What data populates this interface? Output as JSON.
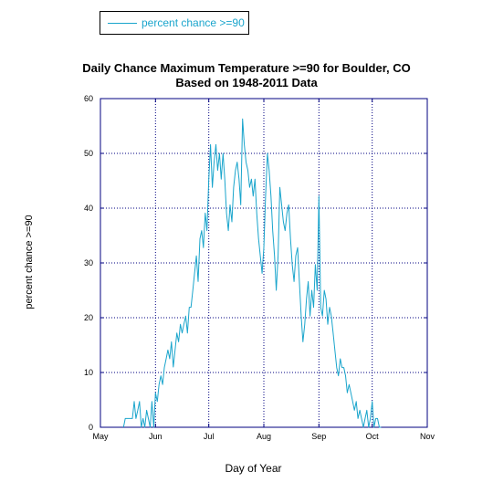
{
  "legend": {
    "label": "percent chance >=90",
    "color": "#1aa5cc"
  },
  "chart_data": {
    "type": "line",
    "title": "Daily Chance Maximum Temperature >=90 for Boulder, CO",
    "subtitle": "Based on 1948-2011 Data",
    "xlabel": "Day of Year",
    "ylabel": "percent chance >=90",
    "xlim": [
      121,
      305
    ],
    "ylim": [
      0,
      60
    ],
    "yticks": [
      0,
      10,
      20,
      30,
      40,
      50,
      60
    ],
    "xticks": [
      {
        "day": 121,
        "label": "May"
      },
      {
        "day": 152,
        "label": "Jun"
      },
      {
        "day": 182,
        "label": "Jul"
      },
      {
        "day": 213,
        "label": "Aug"
      },
      {
        "day": 244,
        "label": "Sep"
      },
      {
        "day": 274,
        "label": "Oct"
      },
      {
        "day": 305,
        "label": "Nov"
      }
    ],
    "grid": true,
    "axis_color": "#000080",
    "series": [
      {
        "name": "percent chance >=90",
        "color": "#1aa5cc",
        "points": [
          [
            134,
            0
          ],
          [
            135,
            1.6
          ],
          [
            136,
            1.6
          ],
          [
            137,
            1.6
          ],
          [
            138,
            1.6
          ],
          [
            139,
            1.6
          ],
          [
            140,
            4.7
          ],
          [
            141,
            1.6
          ],
          [
            142,
            3.1
          ],
          [
            143,
            4.7
          ],
          [
            144,
            0
          ],
          [
            145,
            1.6
          ],
          [
            146,
            0
          ],
          [
            147,
            3.1
          ],
          [
            148,
            1.6
          ],
          [
            149,
            0
          ],
          [
            150,
            4.7
          ],
          [
            151,
            0
          ],
          [
            152,
            6.3
          ],
          [
            153,
            4.7
          ],
          [
            154,
            7.8
          ],
          [
            155,
            9.4
          ],
          [
            156,
            7.8
          ],
          [
            157,
            10.9
          ],
          [
            158,
            12.5
          ],
          [
            159,
            14.1
          ],
          [
            160,
            12.5
          ],
          [
            161,
            15.6
          ],
          [
            162,
            11
          ],
          [
            163,
            14
          ],
          [
            164,
            17.2
          ],
          [
            165,
            15.6
          ],
          [
            166,
            18.8
          ],
          [
            167,
            17.2
          ],
          [
            168,
            18.8
          ],
          [
            169,
            20.3
          ],
          [
            170,
            17.2
          ],
          [
            171,
            21.9
          ],
          [
            172,
            21.9
          ],
          [
            173,
            25
          ],
          [
            174,
            28.1
          ],
          [
            175,
            31.3
          ],
          [
            176,
            26.6
          ],
          [
            177,
            34.4
          ],
          [
            178,
            35.9
          ],
          [
            179,
            32.8
          ],
          [
            180,
            39.1
          ],
          [
            181,
            35.9
          ],
          [
            182,
            45.3
          ],
          [
            183,
            51.6
          ],
          [
            184,
            43.8
          ],
          [
            185,
            48.4
          ],
          [
            186,
            51.6
          ],
          [
            187,
            46.9
          ],
          [
            188,
            50
          ],
          [
            189,
            45.3
          ],
          [
            190,
            50
          ],
          [
            191,
            45.3
          ],
          [
            192,
            39.1
          ],
          [
            193,
            35.9
          ],
          [
            194,
            40.6
          ],
          [
            195,
            37.5
          ],
          [
            196,
            43.8
          ],
          [
            197,
            46.9
          ],
          [
            198,
            48.4
          ],
          [
            199,
            45.3
          ],
          [
            200,
            40.6
          ],
          [
            201,
            56.3
          ],
          [
            202,
            51.6
          ],
          [
            203,
            48.4
          ],
          [
            204,
            46.9
          ],
          [
            205,
            43.8
          ],
          [
            206,
            45.3
          ],
          [
            207,
            42.2
          ],
          [
            208,
            45.3
          ],
          [
            209,
            39.1
          ],
          [
            210,
            34.4
          ],
          [
            211,
            31.3
          ],
          [
            212,
            28.1
          ],
          [
            213,
            32.8
          ],
          [
            214,
            42.2
          ],
          [
            215,
            50
          ],
          [
            216,
            46.9
          ],
          [
            217,
            42.2
          ],
          [
            218,
            35.9
          ],
          [
            219,
            31.3
          ],
          [
            220,
            25
          ],
          [
            221,
            31.3
          ],
          [
            222,
            43.8
          ],
          [
            223,
            40.6
          ],
          [
            224,
            37.5
          ],
          [
            225,
            35.9
          ],
          [
            226,
            39.1
          ],
          [
            227,
            40.6
          ],
          [
            228,
            34.4
          ],
          [
            229,
            29.7
          ],
          [
            230,
            26.6
          ],
          [
            231,
            31.3
          ],
          [
            232,
            32.8
          ],
          [
            233,
            26.6
          ],
          [
            234,
            20.3
          ],
          [
            235,
            15.6
          ],
          [
            236,
            18.8
          ],
          [
            237,
            23.4
          ],
          [
            238,
            26.6
          ],
          [
            239,
            20.3
          ],
          [
            240,
            25
          ],
          [
            241,
            21.9
          ],
          [
            242,
            29.7
          ],
          [
            243,
            25
          ],
          [
            244,
            42.2
          ],
          [
            245,
            21.9
          ],
          [
            246,
            20.3
          ],
          [
            247,
            25
          ],
          [
            248,
            23.4
          ],
          [
            249,
            18.8
          ],
          [
            250,
            21.9
          ],
          [
            251,
            20.3
          ],
          [
            252,
            17.2
          ],
          [
            253,
            14.1
          ],
          [
            254,
            10.9
          ],
          [
            255,
            9.4
          ],
          [
            256,
            12.5
          ],
          [
            257,
            10.9
          ],
          [
            258,
            10.9
          ],
          [
            259,
            9.4
          ],
          [
            260,
            6.3
          ],
          [
            261,
            7.8
          ],
          [
            262,
            6.3
          ],
          [
            263,
            4.7
          ],
          [
            264,
            3.1
          ],
          [
            265,
            4.7
          ],
          [
            266,
            1.6
          ],
          [
            267,
            3.1
          ],
          [
            268,
            1.6
          ],
          [
            269,
            0
          ],
          [
            270,
            1.6
          ],
          [
            271,
            3.1
          ],
          [
            272,
            0
          ],
          [
            273,
            1.6
          ],
          [
            274,
            4.7
          ],
          [
            275,
            0
          ],
          [
            276,
            1.6
          ],
          [
            277,
            1.6
          ],
          [
            278,
            0
          ],
          [
            279,
            0
          ]
        ]
      }
    ]
  }
}
